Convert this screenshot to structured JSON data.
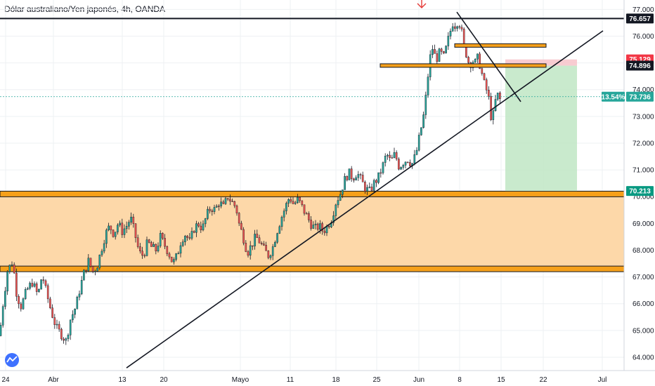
{
  "chart_data": {
    "type": "candlestick",
    "title": "Dólar australiano/Yen japonés, 4h, OANDA",
    "ylim": [
      63.5,
      77.35
    ],
    "y_ticks": [
      "64.000",
      "65.000",
      "66.000",
      "67.000",
      "68.000",
      "69.000",
      "70.000",
      "71.000",
      "72.000",
      "73.000",
      "74.000",
      "75.000",
      "76.000",
      "77.000"
    ],
    "x_ticks": [
      "24",
      "Abr",
      "13",
      "20",
      "Mayo",
      "11",
      "18",
      "25",
      "Jun",
      "8",
      "15",
      "22",
      "Jul"
    ],
    "price_path": [
      [
        0,
        64.8
      ],
      [
        2,
        65.6
      ],
      [
        6,
        66.3
      ],
      [
        10,
        67.2
      ],
      [
        18,
        67.6
      ],
      [
        24,
        66.3
      ],
      [
        30,
        65.9
      ],
      [
        38,
        66.5
      ],
      [
        46,
        66.8
      ],
      [
        54,
        66.3
      ],
      [
        60,
        67.1
      ],
      [
        66,
        66.4
      ],
      [
        72,
        65.8
      ],
      [
        80,
        65.1
      ],
      [
        86,
        64.9
      ],
      [
        94,
        64.6
      ],
      [
        100,
        65.4
      ],
      [
        108,
        65.9
      ],
      [
        114,
        66.6
      ],
      [
        120,
        67.2
      ],
      [
        126,
        67.6
      ],
      [
        132,
        67.2
      ],
      [
        138,
        67.4
      ],
      [
        144,
        68.0
      ],
      [
        150,
        68.6
      ],
      [
        156,
        68.9
      ],
      [
        162,
        68.6
      ],
      [
        168,
        69.0
      ],
      [
        174,
        68.7
      ],
      [
        180,
        68.9
      ],
      [
        186,
        69.2
      ],
      [
        192,
        68.6
      ],
      [
        198,
        67.9
      ],
      [
        204,
        67.8
      ],
      [
        210,
        68.3
      ],
      [
        216,
        68.1
      ],
      [
        222,
        68.0
      ],
      [
        228,
        68.5
      ],
      [
        234,
        68.2
      ],
      [
        240,
        67.9
      ],
      [
        246,
        67.5
      ],
      [
        252,
        67.8
      ],
      [
        258,
        68.4
      ],
      [
        264,
        68.6
      ],
      [
        270,
        68.3
      ],
      [
        276,
        68.8
      ],
      [
        282,
        69.0
      ],
      [
        288,
        68.8
      ],
      [
        294,
        69.3
      ],
      [
        300,
        69.6
      ],
      [
        306,
        69.5
      ],
      [
        312,
        69.8
      ],
      [
        318,
        69.6
      ],
      [
        324,
        70.0
      ],
      [
        330,
        69.8
      ],
      [
        336,
        69.6
      ],
      [
        340,
        69.0
      ],
      [
        346,
        68.5
      ],
      [
        352,
        67.9
      ],
      [
        358,
        68.2
      ],
      [
        364,
        68.5
      ],
      [
        370,
        68.3
      ],
      [
        376,
        68.0
      ],
      [
        382,
        67.8
      ],
      [
        388,
        68.1
      ],
      [
        394,
        68.7
      ],
      [
        400,
        69.2
      ],
      [
        406,
        69.6
      ],
      [
        412,
        70.0
      ],
      [
        418,
        69.7
      ],
      [
        424,
        69.9
      ],
      [
        430,
        69.6
      ],
      [
        436,
        69.3
      ],
      [
        442,
        69.0
      ],
      [
        448,
        68.8
      ],
      [
        454,
        68.9
      ],
      [
        460,
        68.7
      ],
      [
        466,
        68.9
      ],
      [
        472,
        69.2
      ],
      [
        478,
        69.8
      ],
      [
        484,
        70.1
      ],
      [
        490,
        70.6
      ],
      [
        496,
        70.9
      ],
      [
        502,
        70.7
      ],
      [
        508,
        70.9
      ],
      [
        514,
        70.6
      ],
      [
        520,
        70.3
      ],
      [
        526,
        70.2
      ],
      [
        532,
        70.5
      ],
      [
        538,
        70.7
      ],
      [
        544,
        71.1
      ],
      [
        550,
        71.6
      ],
      [
        556,
        71.3
      ],
      [
        562,
        71.6
      ],
      [
        568,
        71.1
      ],
      [
        574,
        71.3
      ],
      [
        580,
        71.4
      ],
      [
        586,
        71.2
      ],
      [
        592,
        71.6
      ],
      [
        598,
        72.4
      ],
      [
        604,
        73.2
      ],
      [
        608,
        74.3
      ],
      [
        612,
        75.2
      ],
      [
        616,
        75.6
      ],
      [
        620,
        75.1
      ],
      [
        626,
        75.4
      ],
      [
        632,
        75.2
      ],
      [
        636,
        75.7
      ],
      [
        640,
        76.1
      ],
      [
        644,
        76.5
      ],
      [
        648,
        76.4
      ],
      [
        652,
        76.6
      ],
      [
        656,
        76.3
      ],
      [
        660,
        75.6
      ],
      [
        664,
        75.3
      ],
      [
        668,
        74.9
      ],
      [
        672,
        75.1
      ],
      [
        676,
        75.0
      ],
      [
        680,
        75.2
      ],
      [
        684,
        74.8
      ],
      [
        688,
        74.3
      ],
      [
        692,
        74.0
      ],
      [
        696,
        73.6
      ],
      [
        700,
        72.7
      ],
      [
        704,
        73.5
      ],
      [
        708,
        73.8
      ],
      [
        712,
        73.6
      ]
    ],
    "annotations": {
      "h_line": 76.657,
      "price_badges": [
        {
          "label": "76.657",
          "y": 76.657,
          "color": "#131722"
        },
        {
          "label": "75.129",
          "y": 75.129,
          "color": "#f23645"
        },
        {
          "label": "74.896",
          "y": 74.896,
          "color": "#131722"
        },
        {
          "label": "73.736",
          "y": 73.736,
          "color": "#26a69a"
        },
        {
          "label": "70.213",
          "y": 70.213,
          "color": "#089981"
        }
      ],
      "pct_label": "13.54%",
      "support_zone": [
        67.3,
        70.1
      ],
      "support_edges": [
        70.1,
        67.3
      ],
      "resistance_lines": [
        {
          "y": 75.65,
          "x_from_date": "Jun 8",
          "x_to_date": "Jun 22"
        },
        {
          "y": 74.9,
          "x_from_date": "May 28",
          "x_to_date": "Jun 22"
        }
      ],
      "trendline": [
        [
          -0.25,
          63.6
        ],
        [
          1.22,
          75.5
        ]
      ],
      "down_trend": [
        [
          0.96,
          76.9
        ],
        [
          1.06,
          73.55
        ]
      ],
      "position": {
        "entry": 74.896,
        "stop": 75.129,
        "target": 70.213
      }
    },
    "colors": {
      "up": "#26a69a",
      "down": "#ef5350",
      "wick": "#131722",
      "zone": "#fdd8a9",
      "zone_edge": "#f6a01a",
      "profit": "#bfe6c4",
      "loss": "#f7c6cc",
      "arrow": "#e53935"
    }
  }
}
